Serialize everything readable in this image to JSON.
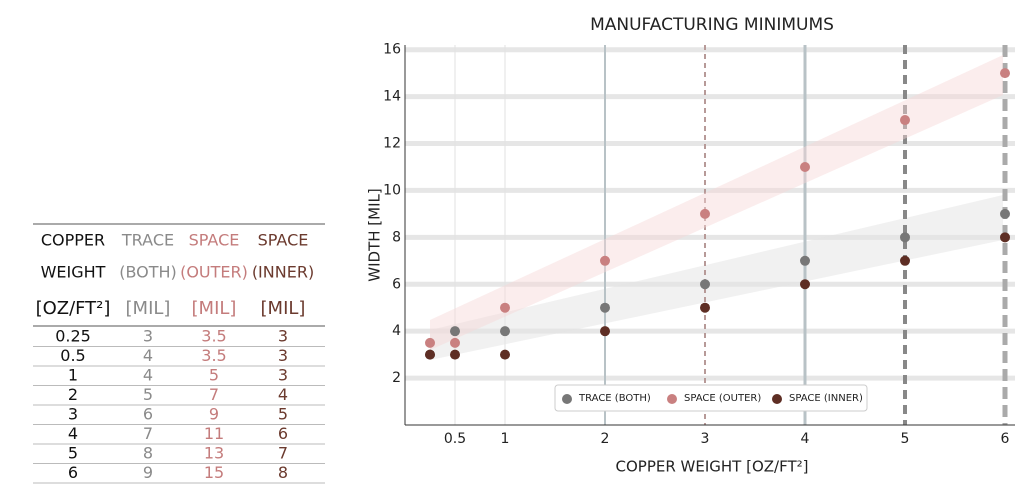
{
  "table": {
    "header": [
      [
        "COPPER",
        "TRACE",
        "SPACE",
        "SPACE"
      ],
      [
        "WEIGHT",
        "(BOTH)",
        "(OUTER)",
        "(INNER)"
      ],
      [
        "[OZ/FT²]",
        "[MIL]",
        "[MIL]",
        "[MIL]"
      ]
    ],
    "colors": [
      "#111111",
      "#8a8a8a",
      "#c47c7c",
      "#6b3a2e"
    ],
    "rows": [
      [
        "0.25",
        "3",
        "3.5",
        "3"
      ],
      [
        "0.5",
        "4",
        "3.5",
        "3"
      ],
      [
        "1",
        "4",
        "5",
        "3"
      ],
      [
        "2",
        "5",
        "7",
        "4"
      ],
      [
        "3",
        "6",
        "9",
        "5"
      ],
      [
        "4",
        "7",
        "11",
        "6"
      ],
      [
        "5",
        "8",
        "13",
        "7"
      ],
      [
        "6",
        "9",
        "15",
        "8"
      ]
    ]
  },
  "chart_data": {
    "type": "scatter",
    "title": "MANUFACTURING MINIMUMS",
    "xlabel": "COPPER WEIGHT [OZ/FT²]",
    "ylabel": "WIDTH [MIL]",
    "x": [
      0.25,
      0.5,
      1,
      2,
      3,
      4,
      5,
      6
    ],
    "series": [
      {
        "name": "TRACE (BOTH)",
        "color": "#777777",
        "values": [
          3,
          4,
          4,
          5,
          6,
          7,
          8,
          9
        ]
      },
      {
        "name": "SPACE (OUTER)",
        "color": "#c98080",
        "values": [
          3.5,
          3.5,
          5,
          7,
          9,
          11,
          13,
          15
        ]
      },
      {
        "name": "SPACE (INNER)",
        "color": "#5e2e24",
        "values": [
          3,
          3,
          3,
          4,
          5,
          6,
          7,
          8
        ]
      }
    ],
    "xlim": [
      0,
      6.1
    ],
    "ylim": [
      0,
      16.2
    ],
    "xticks": [
      0.5,
      1,
      2,
      3,
      4,
      5,
      6
    ],
    "yticks": [
      2,
      4,
      6,
      8,
      10,
      12,
      14,
      16
    ],
    "grid": true,
    "legend": "lower center"
  }
}
